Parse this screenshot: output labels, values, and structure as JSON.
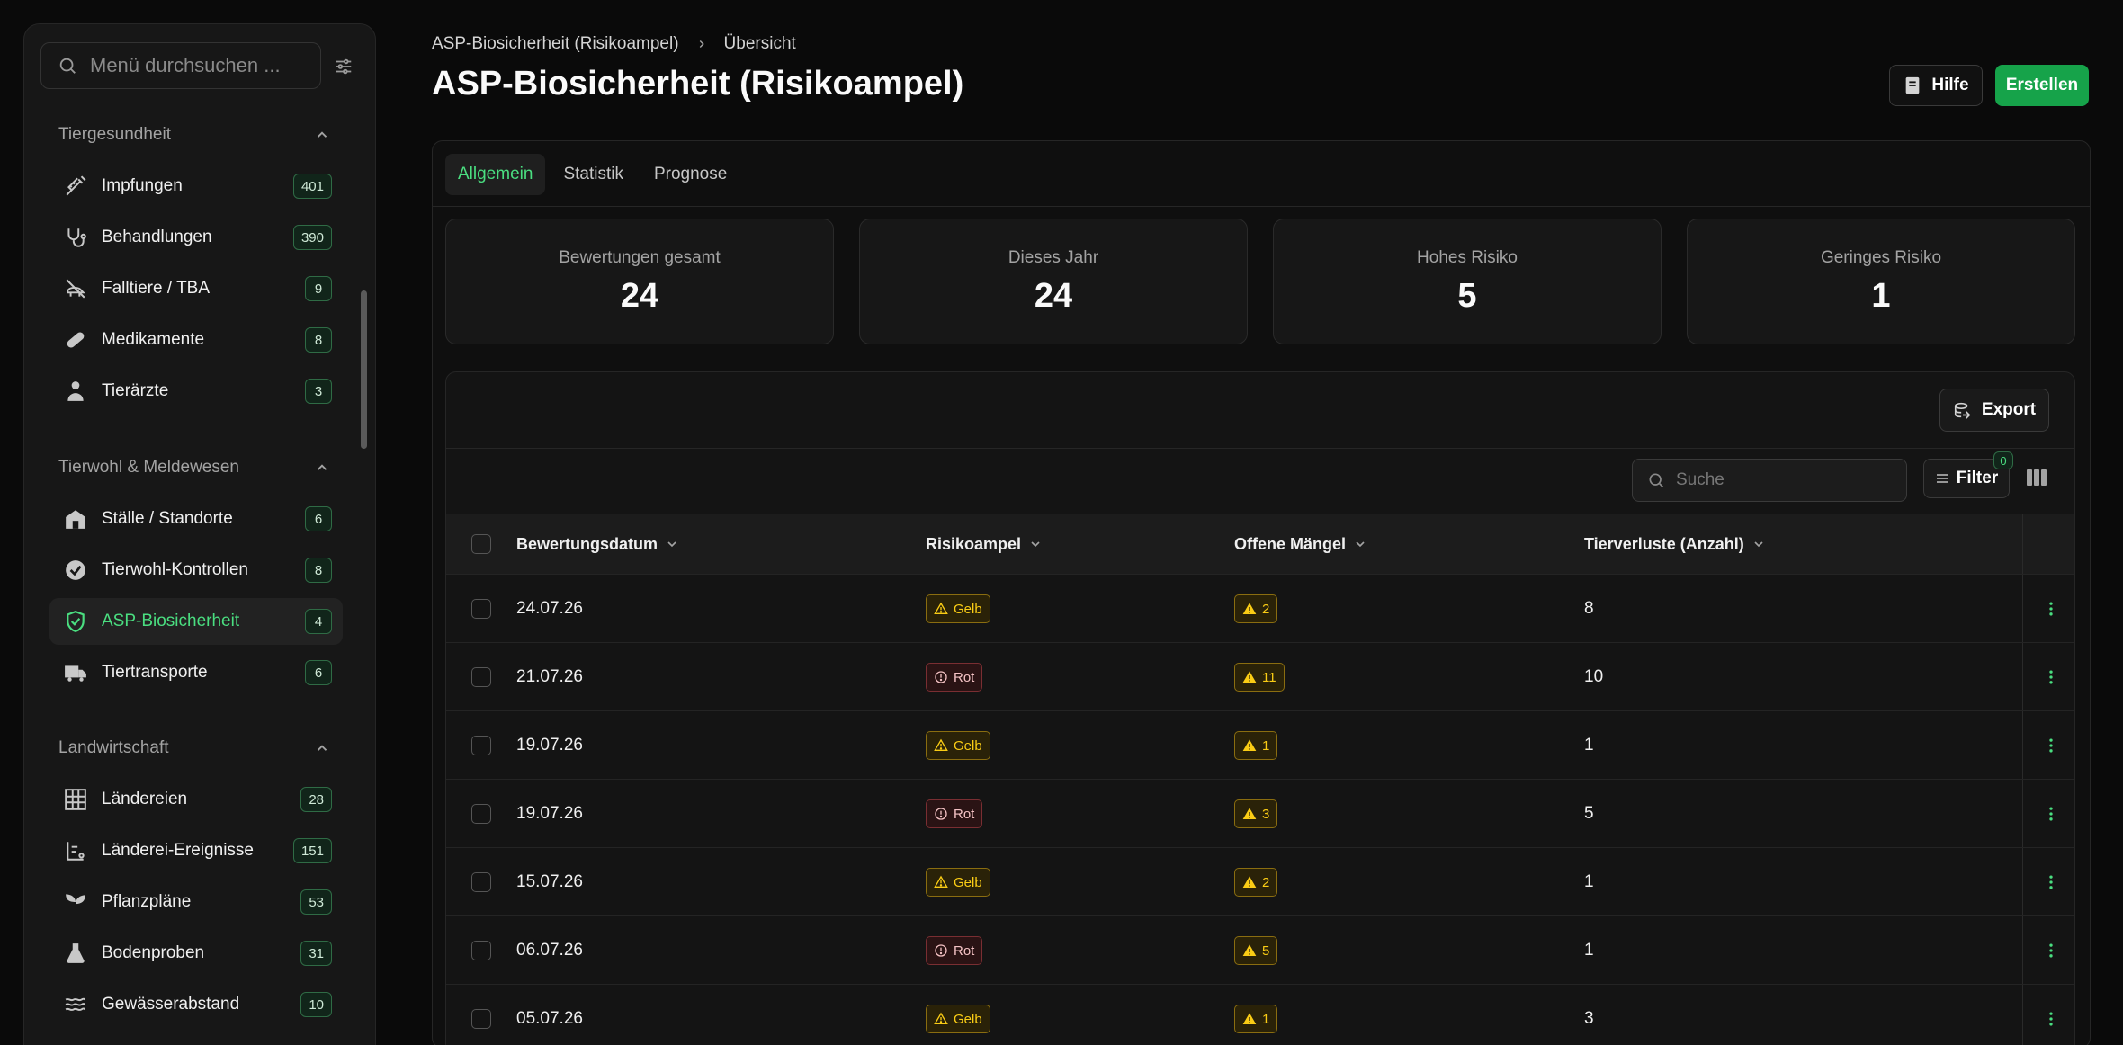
{
  "sidebar": {
    "search_placeholder": "Menü durchsuchen ...",
    "groups": [
      {
        "title": "Tiergesundheit",
        "items": [
          {
            "label": "Impfungen",
            "count": "401",
            "icon": "syringe-icon"
          },
          {
            "label": "Behandlungen",
            "count": "390",
            "icon": "stethoscope-icon"
          },
          {
            "label": "Falltiere / TBA",
            "count": "9",
            "icon": "dead-animal-icon"
          },
          {
            "label": "Medikamente",
            "count": "8",
            "icon": "pill-icon"
          },
          {
            "label": "Tierärzte",
            "count": "3",
            "icon": "vet-icon"
          }
        ]
      },
      {
        "title": "Tierwohl & Meldewesen",
        "items": [
          {
            "label": "Ställe / Standorte",
            "count": "6",
            "icon": "barn-icon"
          },
          {
            "label": "Tierwohl-Kontrollen",
            "count": "8",
            "icon": "check-badge-icon"
          },
          {
            "label": "ASP-Biosicherheit",
            "count": "4",
            "icon": "shield-check-icon",
            "active": true
          },
          {
            "label": "Tiertransporte",
            "count": "6",
            "icon": "truck-icon"
          }
        ]
      },
      {
        "title": "Landwirtschaft",
        "items": [
          {
            "label": "Ländereien",
            "count": "28",
            "icon": "grid-icon"
          },
          {
            "label": "Länderei-Ereignisse",
            "count": "151",
            "icon": "events-icon"
          },
          {
            "label": "Pflanzpläne",
            "count": "53",
            "icon": "sprout-icon"
          },
          {
            "label": "Bodenproben",
            "count": "31",
            "icon": "flask-icon"
          },
          {
            "label": "Gewässerabstand",
            "count": "10",
            "icon": "water-icon"
          }
        ]
      }
    ]
  },
  "breadcrumb": {
    "parent": "ASP-Biosicherheit (Risikoampel)",
    "current": "Übersicht"
  },
  "page_title": "ASP-Biosicherheit (Risikoampel)",
  "actions": {
    "help": "Hilfe",
    "create": "Erstellen"
  },
  "tabs": [
    "Allgemein",
    "Statistik",
    "Prognose"
  ],
  "stats": [
    {
      "label": "Bewertungen gesamt",
      "value": "24"
    },
    {
      "label": "Dieses Jahr",
      "value": "24"
    },
    {
      "label": "Hohes Risiko",
      "value": "5"
    },
    {
      "label": "Geringes Risiko",
      "value": "1"
    }
  ],
  "table": {
    "export_label": "Export",
    "search_placeholder": "Suche",
    "filter_label": "Filter",
    "filter_count": "0",
    "columns": [
      "Bewertungsdatum",
      "Risikoampel",
      "Offene Mängel",
      "Tierverluste (Anzahl)"
    ],
    "rows": [
      {
        "date": "24.07.26",
        "risk": "Gelb",
        "defects": "2",
        "losses": "8"
      },
      {
        "date": "21.07.26",
        "risk": "Rot",
        "defects": "11",
        "losses": "10"
      },
      {
        "date": "19.07.26",
        "risk": "Gelb",
        "defects": "1",
        "losses": "1"
      },
      {
        "date": "19.07.26",
        "risk": "Rot",
        "defects": "3",
        "losses": "5"
      },
      {
        "date": "15.07.26",
        "risk": "Gelb",
        "defects": "2",
        "losses": "1"
      },
      {
        "date": "06.07.26",
        "risk": "Rot",
        "defects": "5",
        "losses": "1"
      },
      {
        "date": "05.07.26",
        "risk": "Gelb",
        "defects": "1",
        "losses": "3"
      }
    ]
  },
  "colors": {
    "accent": "#4ade80",
    "primary_button": "#16a34a",
    "yellow": "#facc15",
    "red": "#f87171"
  }
}
